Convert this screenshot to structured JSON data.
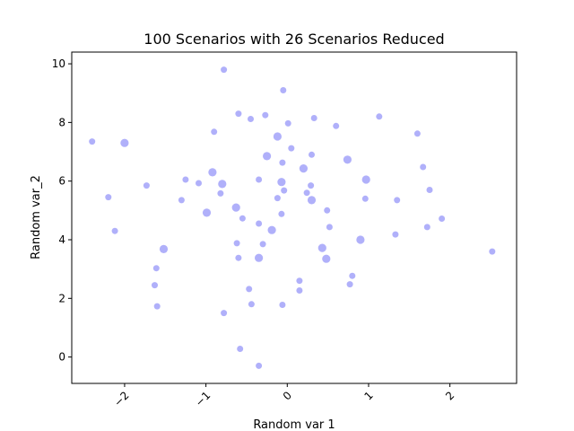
{
  "chart_data": {
    "type": "scatter",
    "title": "100 Scenarios with 26 Scenarios Reduced",
    "xlabel": "Random var  1",
    "ylabel": "Random var_2",
    "xlim": [
      -2.65,
      2.82
    ],
    "ylim": [
      -0.9,
      10.4
    ],
    "xticks": [
      -2,
      -1,
      0,
      1,
      2
    ],
    "xtick_labels": [
      "−2",
      "−1",
      "0",
      "1",
      "2"
    ],
    "yticks": [
      0,
      2,
      4,
      6,
      8,
      10
    ],
    "ytick_labels": [
      "0",
      "2",
      "4",
      "6",
      "8",
      "10"
    ],
    "grid": false,
    "legend": "none",
    "point_color": "#7b7bf7",
    "point_alpha": 0.6,
    "series": [
      {
        "points": [
          [
            -0.78,
            9.8
          ],
          [
            -0.05,
            9.1
          ],
          [
            -0.6,
            8.3
          ],
          [
            -0.27,
            8.25
          ],
          [
            -0.45,
            8.12
          ],
          [
            0.33,
            8.15
          ],
          [
            0.01,
            7.97
          ],
          [
            0.6,
            7.88
          ],
          [
            1.13,
            8.2
          ],
          [
            1.6,
            7.62
          ],
          [
            -2.4,
            7.35
          ],
          [
            -0.9,
            7.68
          ],
          [
            0.05,
            7.12
          ],
          [
            0.3,
            6.9
          ],
          [
            -0.06,
            6.63
          ],
          [
            1.67,
            6.48
          ],
          [
            -1.25,
            6.05
          ],
          [
            -1.09,
            5.93
          ],
          [
            -1.73,
            5.85
          ],
          [
            -0.35,
            6.05
          ],
          [
            -0.82,
            5.58
          ],
          [
            -0.12,
            5.42
          ],
          [
            -0.04,
            5.68
          ],
          [
            0.29,
            5.85
          ],
          [
            0.24,
            5.6
          ],
          [
            -2.2,
            5.45
          ],
          [
            -1.3,
            5.35
          ],
          [
            0.49,
            5.0
          ],
          [
            0.96,
            5.4
          ],
          [
            1.35,
            5.35
          ],
          [
            1.75,
            5.7
          ],
          [
            -0.55,
            4.73
          ],
          [
            -0.35,
            4.55
          ],
          [
            -0.07,
            4.88
          ],
          [
            0.52,
            4.43
          ],
          [
            1.9,
            4.72
          ],
          [
            1.72,
            4.43
          ],
          [
            -2.12,
            4.3
          ],
          [
            1.33,
            4.18
          ],
          [
            -0.62,
            3.88
          ],
          [
            -0.3,
            3.85
          ],
          [
            -0.6,
            3.38
          ],
          [
            2.52,
            3.6
          ],
          [
            -1.61,
            3.03
          ],
          [
            0.15,
            2.6
          ],
          [
            0.8,
            2.77
          ],
          [
            0.77,
            2.48
          ],
          [
            -1.63,
            2.45
          ],
          [
            0.15,
            2.27
          ],
          [
            -0.47,
            2.32
          ],
          [
            -1.6,
            1.73
          ],
          [
            -0.44,
            1.8
          ],
          [
            -0.06,
            1.78
          ],
          [
            -0.78,
            1.5
          ],
          [
            -0.58,
            0.28
          ],
          [
            -0.35,
            -0.3
          ]
        ]
      },
      {
        "points": [
          [
            -2.0,
            7.3
          ],
          [
            -0.12,
            7.52
          ],
          [
            -0.25,
            6.85
          ],
          [
            0.2,
            6.43
          ],
          [
            0.74,
            6.73
          ],
          [
            -0.92,
            6.3
          ],
          [
            0.97,
            6.05
          ],
          [
            -0.07,
            5.97
          ],
          [
            -0.8,
            5.9
          ],
          [
            0.3,
            5.35
          ],
          [
            -0.63,
            5.1
          ],
          [
            -0.99,
            4.92
          ],
          [
            -0.19,
            4.33
          ],
          [
            0.9,
            4.0
          ],
          [
            0.43,
            3.72
          ],
          [
            -1.52,
            3.68
          ],
          [
            0.48,
            3.35
          ],
          [
            -0.35,
            3.38
          ]
        ]
      }
    ]
  }
}
